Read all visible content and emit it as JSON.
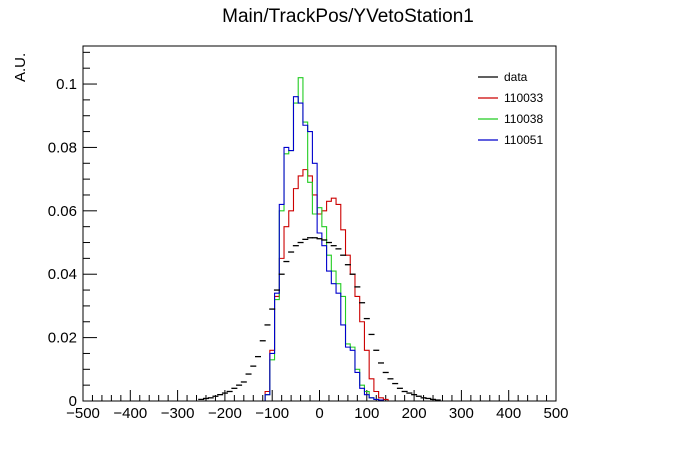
{
  "chart_data": {
    "type": "step-histogram",
    "title": "Main/TrackPos/YVetoStation1",
    "ylabel": "A.U.",
    "xlabel": "",
    "xlim": [
      -500,
      500
    ],
    "ylim": [
      0,
      0.112
    ],
    "xticks": [
      -500,
      -400,
      -300,
      -200,
      -100,
      0,
      100,
      200,
      300,
      400,
      500
    ],
    "xtick_labels": [
      "−500",
      "−400",
      "−300",
      "−200",
      "−100",
      "0",
      "100",
      "200",
      "300",
      "400",
      "500"
    ],
    "yticks": [
      0,
      0.02,
      0.04,
      0.06,
      0.08,
      0.1
    ],
    "ytick_labels": [
      "0",
      "0.02",
      "0.04",
      "0.06",
      "0.08",
      "0.1"
    ],
    "bin_width": 10,
    "legend_position": "top-right",
    "series": [
      {
        "name": "data",
        "color": "#000000",
        "style": "markers",
        "x": [
          -250,
          -240,
          -230,
          -220,
          -210,
          -200,
          -190,
          -180,
          -170,
          -160,
          -150,
          -140,
          -130,
          -120,
          -110,
          -100,
          -90,
          -80,
          -70,
          -60,
          -50,
          -40,
          -30,
          -20,
          -10,
          0,
          10,
          20,
          30,
          40,
          50,
          60,
          70,
          80,
          90,
          100,
          110,
          120,
          130,
          140,
          150,
          160,
          170,
          180,
          190,
          200,
          210,
          220,
          230,
          240,
          250
        ],
        "values": [
          0.0005,
          0.0008,
          0.001,
          0.0015,
          0.002,
          0.0025,
          0.003,
          0.004,
          0.005,
          0.006,
          0.0085,
          0.011,
          0.014,
          0.019,
          0.024,
          0.029,
          0.035,
          0.04,
          0.044,
          0.047,
          0.049,
          0.05,
          0.051,
          0.0515,
          0.0515,
          0.0512,
          0.0508,
          0.05,
          0.049,
          0.048,
          0.046,
          0.043,
          0.04,
          0.036,
          0.031,
          0.026,
          0.021,
          0.016,
          0.012,
          0.009,
          0.007,
          0.0055,
          0.004,
          0.003,
          0.0025,
          0.002,
          0.0015,
          0.001,
          0.0008,
          0.0005,
          0.0003
        ]
      },
      {
        "name": "110033",
        "color": "#cc0000",
        "style": "step",
        "x": [
          -110,
          -100,
          -90,
          -80,
          -70,
          -60,
          -50,
          -40,
          -30,
          -20,
          -10,
          0,
          10,
          20,
          30,
          40,
          50,
          60,
          70,
          80,
          90,
          100,
          110,
          120,
          130,
          140
        ],
        "values": [
          0.003,
          0.016,
          0.033,
          0.045,
          0.055,
          0.06,
          0.067,
          0.071,
          0.073,
          0.071,
          0.065,
          0.059,
          0.06,
          0.063,
          0.064,
          0.062,
          0.054,
          0.046,
          0.04,
          0.033,
          0.025,
          0.016,
          0.007,
          0.003,
          0.001,
          0.0005
        ]
      },
      {
        "name": "110038",
        "color": "#22cc22",
        "style": "step",
        "x": [
          -110,
          -100,
          -90,
          -80,
          -70,
          -60,
          -50,
          -40,
          -30,
          -20,
          -10,
          0,
          10,
          20,
          30,
          40,
          50,
          60,
          70,
          80,
          90,
          100,
          110,
          120,
          130
        ],
        "values": [
          0.002,
          0.013,
          0.032,
          0.06,
          0.078,
          0.079,
          0.094,
          0.102,
          0.088,
          0.069,
          0.059,
          0.061,
          0.055,
          0.046,
          0.041,
          0.037,
          0.033,
          0.018,
          0.017,
          0.01,
          0.005,
          0.003,
          0.001,
          0.0005,
          0.0003
        ]
      },
      {
        "name": "110051",
        "color": "#0000cc",
        "style": "step",
        "x": [
          -110,
          -100,
          -90,
          -80,
          -70,
          -60,
          -50,
          -40,
          -30,
          -20,
          -10,
          0,
          10,
          20,
          30,
          40,
          50,
          60,
          70,
          80,
          90,
          100,
          110,
          120,
          130
        ],
        "values": [
          0.002,
          0.015,
          0.034,
          0.062,
          0.08,
          0.079,
          0.096,
          0.094,
          0.087,
          0.085,
          0.075,
          0.053,
          0.049,
          0.041,
          0.037,
          0.034,
          0.024,
          0.017,
          0.016,
          0.009,
          0.004,
          0.002,
          0.001,
          0.0005,
          0.0003
        ]
      }
    ]
  }
}
